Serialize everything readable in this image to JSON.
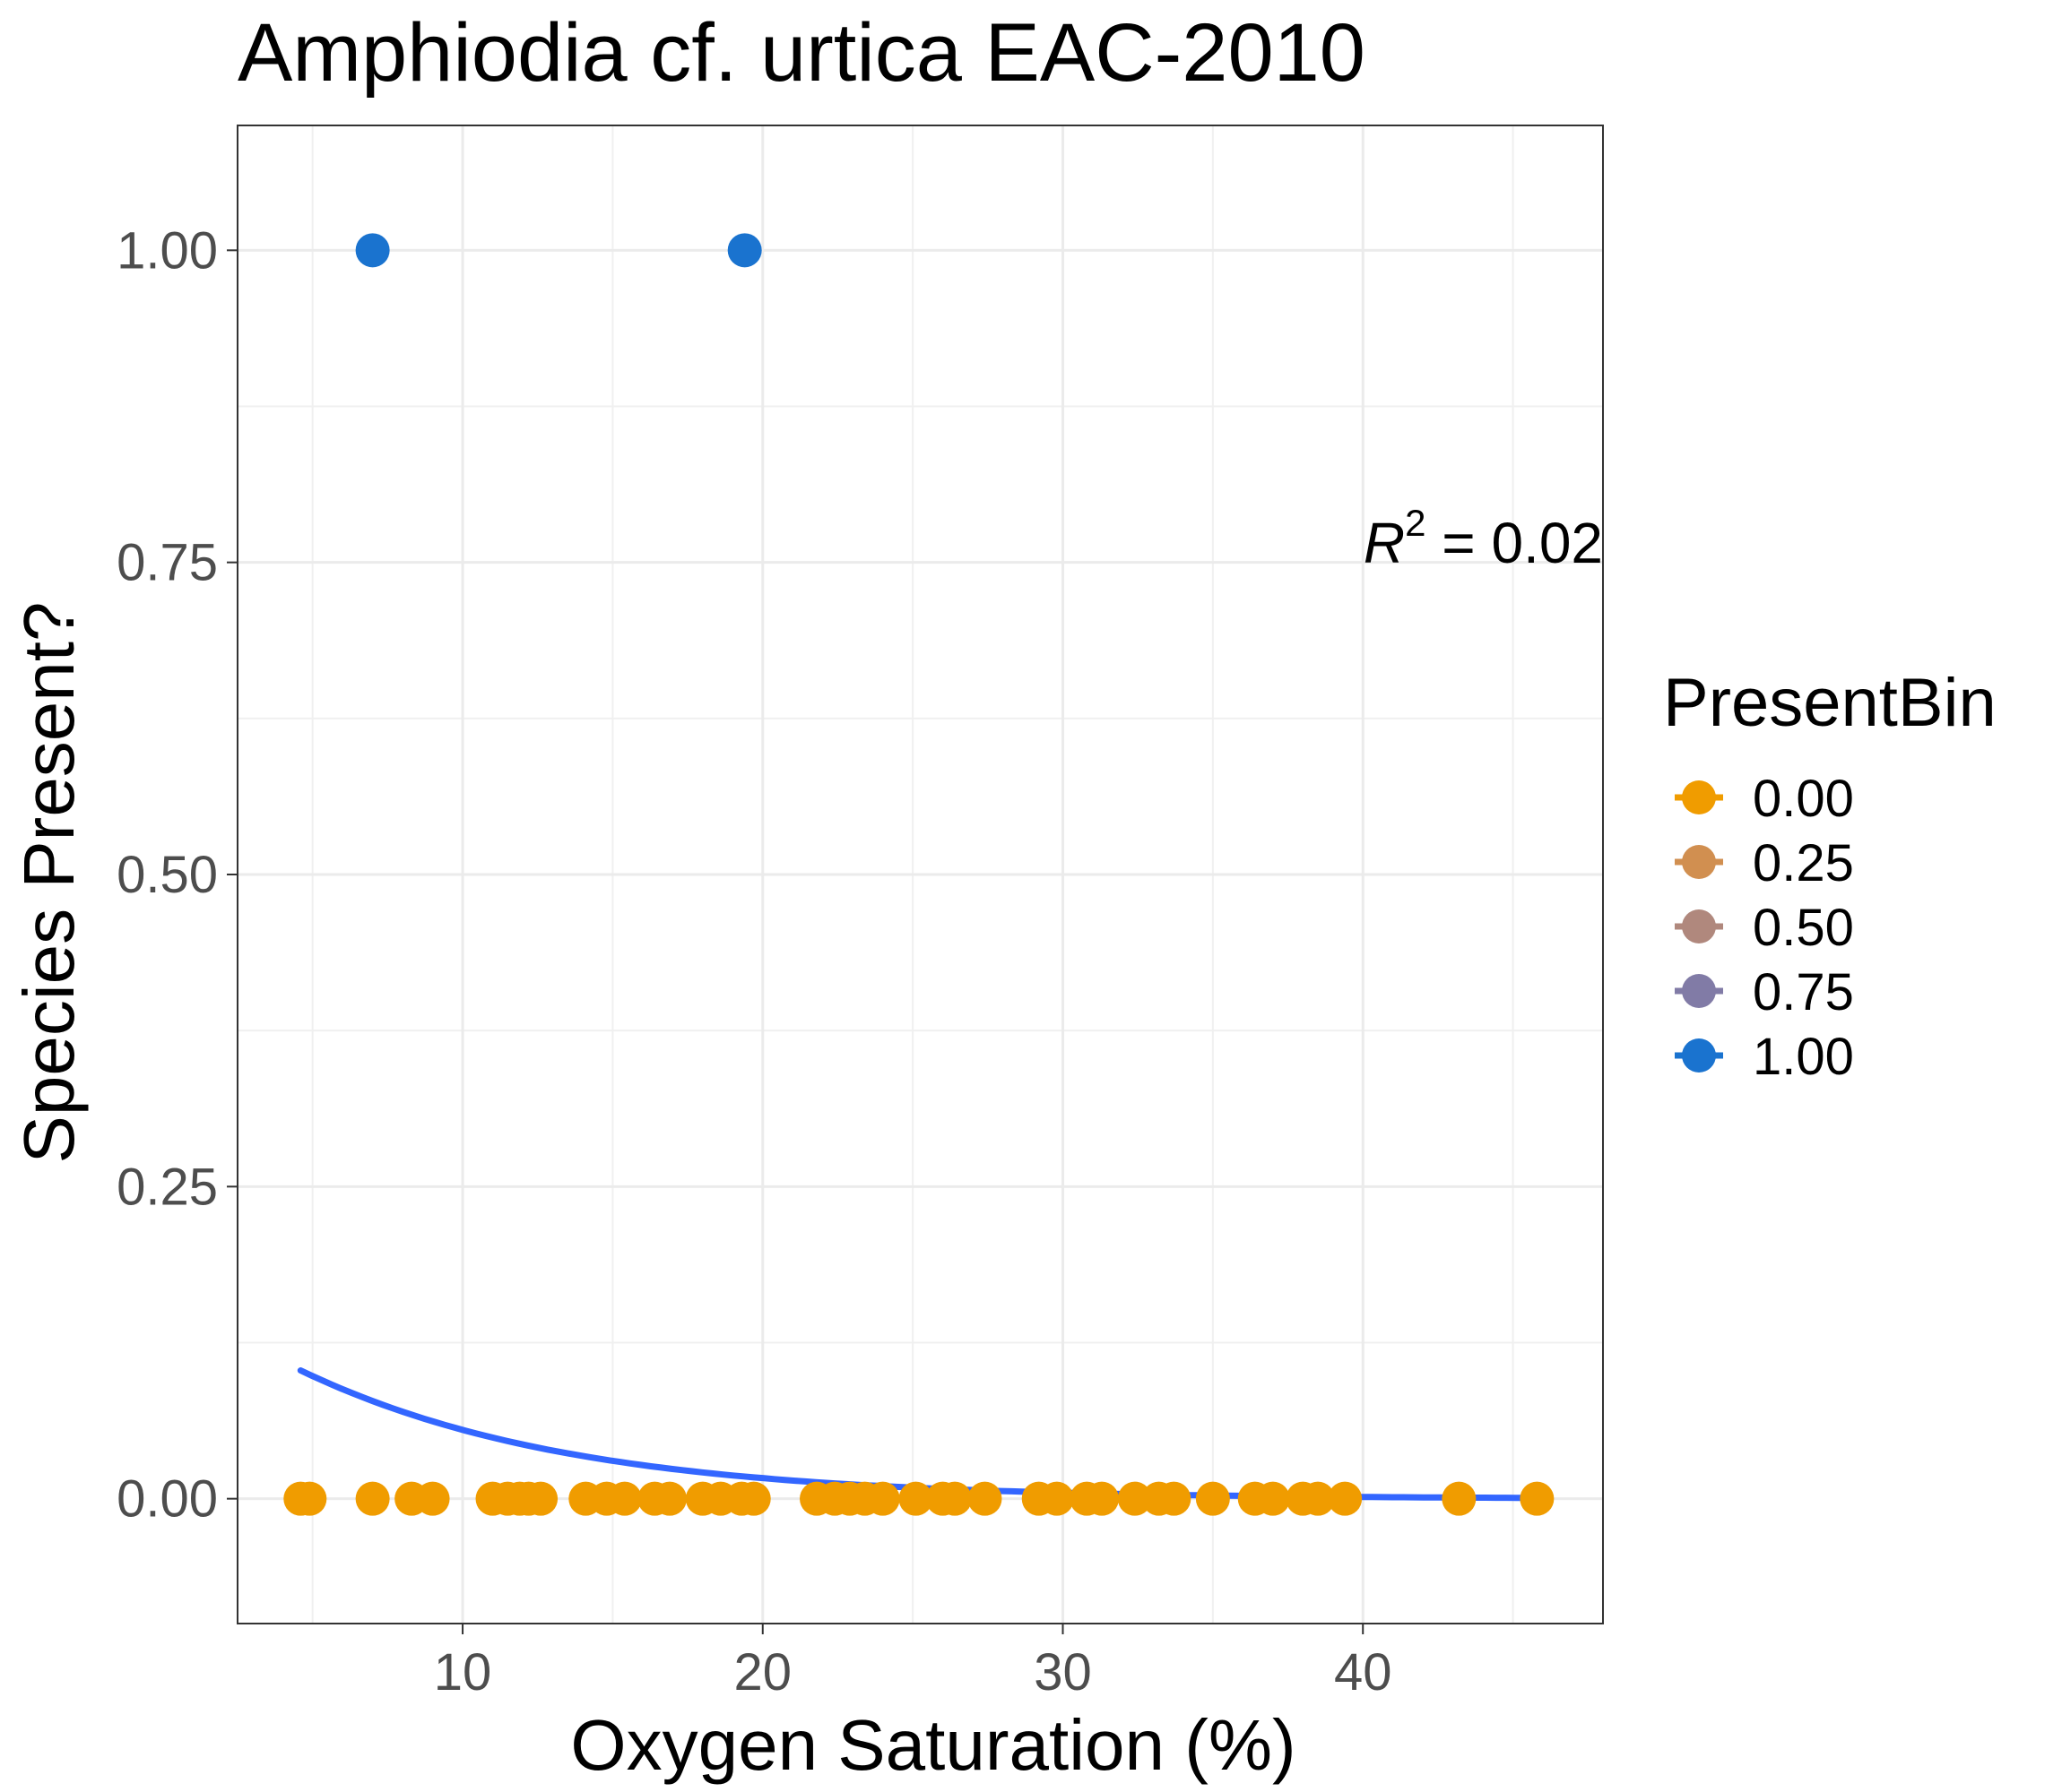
{
  "chart_data": {
    "type": "scatter",
    "title": "Amphiodia cf. urtica EAC-2010",
    "xlabel": "Oxygen Saturation (%)",
    "ylabel": "Species Present?",
    "xlim": [
      2.5,
      48
    ],
    "ylim": [
      -0.1,
      1.1
    ],
    "x_ticks": [
      10,
      20,
      30,
      40
    ],
    "x_tick_labels": [
      "10",
      "20",
      "30",
      "40"
    ],
    "y_ticks": [
      0,
      0.25,
      0.5,
      0.75,
      1
    ],
    "y_tick_labels": [
      "0.00",
      "0.25",
      "0.50",
      "0.75",
      "1.00"
    ],
    "grid": true,
    "legend": {
      "title": "PresentBin",
      "placement": "right",
      "items": [
        {
          "label": "0.00",
          "color": "#F09C00"
        },
        {
          "label": "0.25",
          "color": "#D18F50"
        },
        {
          "label": "0.50",
          "color": "#B0887D"
        },
        {
          "label": "0.75",
          "color": "#817BA6"
        },
        {
          "label": "1.00",
          "color": "#1A73CF"
        }
      ]
    },
    "annotation": {
      "r_symbol": "R",
      "exponent": "2",
      "text": " = 0.02"
    },
    "series": [
      {
        "present_bin": 0,
        "color": "#F09C00",
        "points": [
          [
            4.6,
            0
          ],
          [
            4.9,
            0
          ],
          [
            7.0,
            0
          ],
          [
            8.3,
            0
          ],
          [
            9.0,
            0
          ],
          [
            11.0,
            0
          ],
          [
            11.5,
            0
          ],
          [
            11.9,
            0
          ],
          [
            12.2,
            0
          ],
          [
            12.6,
            0
          ],
          [
            14.1,
            0
          ],
          [
            14.8,
            0
          ],
          [
            15.4,
            0
          ],
          [
            16.4,
            0
          ],
          [
            16.9,
            0
          ],
          [
            18.0,
            0
          ],
          [
            18.6,
            0
          ],
          [
            19.3,
            0
          ],
          [
            19.7,
            0
          ],
          [
            21.8,
            0
          ],
          [
            22.4,
            0
          ],
          [
            22.9,
            0
          ],
          [
            23.4,
            0
          ],
          [
            24.0,
            0
          ],
          [
            25.1,
            0
          ],
          [
            26.0,
            0
          ],
          [
            26.4,
            0
          ],
          [
            27.4,
            0
          ],
          [
            29.2,
            0
          ],
          [
            29.8,
            0
          ],
          [
            30.8,
            0
          ],
          [
            31.3,
            0
          ],
          [
            32.4,
            0
          ],
          [
            33.2,
            0
          ],
          [
            33.7,
            0
          ],
          [
            35.0,
            0
          ],
          [
            36.4,
            0
          ],
          [
            37.0,
            0
          ],
          [
            38.0,
            0
          ],
          [
            38.5,
            0
          ],
          [
            39.4,
            0
          ],
          [
            43.2,
            0
          ],
          [
            45.8,
            0
          ]
        ]
      },
      {
        "present_bin": 1,
        "color": "#1A73CF",
        "points": [
          [
            7.0,
            1
          ],
          [
            19.4,
            1
          ]
        ]
      }
    ],
    "fit": {
      "type": "logistic",
      "color": "#3366FF",
      "x_range": [
        4.6,
        45.8
      ],
      "intercept": -1.593,
      "slope": -0.1248
    }
  }
}
